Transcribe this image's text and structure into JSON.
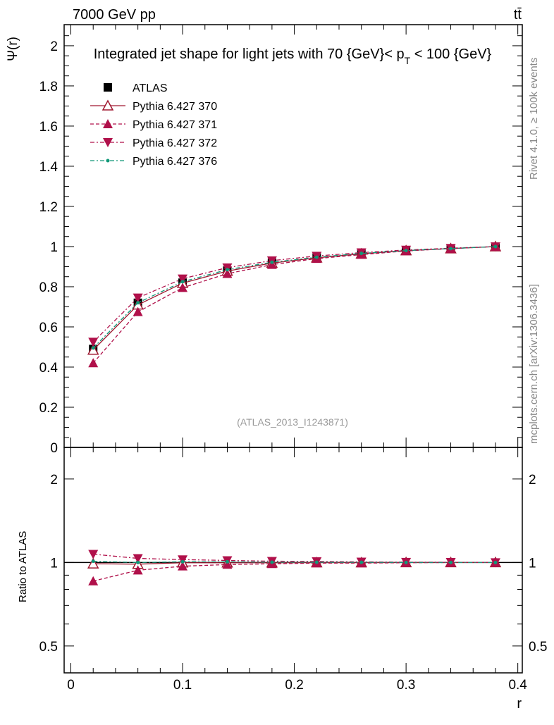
{
  "chart_data": {
    "type": "line",
    "title": "Integrated jet shape for light jets with 70 {GeV}< p_T < 100 {GeV}",
    "title_main": "Integrated jet shape for light jets with 70 {GeV}< p",
    "title_sub": "T",
    "title_tail": " < 100 {GeV}",
    "top_left_label": "7000 GeV pp",
    "top_right_label": "tt̄",
    "side_label_1": "Rivet 4.1.0, ≥ 100k events",
    "side_label_2": "mcplots.cern.ch [arXiv:1306.3436]",
    "analysis_label": "(ATLAS_2013_I1243871)",
    "xlabel": "r",
    "ylabel": "Ψ(r)",
    "ratio_ylabel": "Ratio to ATLAS",
    "xlim": [
      -0.006,
      0.404
    ],
    "ylim": [
      0,
      2.105
    ],
    "ratio_ylim": [
      0.4,
      2.6
    ],
    "ratio_scale": "log",
    "xticks": [
      {
        "v": 0,
        "label": "0"
      },
      {
        "v": 0.1,
        "label": "0.1"
      },
      {
        "v": 0.2,
        "label": "0.2"
      },
      {
        "v": 0.3,
        "label": "0.3"
      },
      {
        "v": 0.4,
        "label": "0.4"
      }
    ],
    "yticks": [
      {
        "v": 0,
        "label": "0"
      },
      {
        "v": 0.2,
        "label": "0.2"
      },
      {
        "v": 0.4,
        "label": "0.4"
      },
      {
        "v": 0.6,
        "label": "0.6"
      },
      {
        "v": 0.8,
        "label": "0.8"
      },
      {
        "v": 1,
        "label": "1"
      },
      {
        "v": 1.2,
        "label": "1.2"
      },
      {
        "v": 1.4,
        "label": "1.4"
      },
      {
        "v": 1.6,
        "label": "1.6"
      },
      {
        "v": 1.8,
        "label": "1.8"
      },
      {
        "v": 2,
        "label": "2"
      }
    ],
    "ratio_yticks": [
      {
        "v": 0.5,
        "label": "0.5"
      },
      {
        "v": 1,
        "label": "1"
      },
      {
        "v": 2,
        "label": "2"
      }
    ],
    "legend_position": "top-left",
    "x": [
      0.02,
      0.06,
      0.1,
      0.14,
      0.18,
      0.22,
      0.26,
      0.3,
      0.34,
      0.38
    ],
    "series": [
      {
        "name": "ATLAS",
        "color": "#000000",
        "marker": "square",
        "dash": "none",
        "values": [
          0.49,
          0.72,
          0.82,
          0.88,
          0.92,
          0.945,
          0.965,
          0.98,
          0.99,
          1.0
        ]
      },
      {
        "name": "Pythia 6.427 370",
        "color": "#a01830",
        "marker": "triangle-open",
        "dash": "solid",
        "values": [
          0.485,
          0.71,
          0.818,
          0.878,
          0.918,
          0.944,
          0.964,
          0.98,
          0.99,
          1.0
        ]
      },
      {
        "name": "Pythia 6.427 371",
        "color": "#b0104a",
        "marker": "triangle",
        "dash": "5,3",
        "values": [
          0.42,
          0.675,
          0.795,
          0.865,
          0.91,
          0.94,
          0.96,
          0.978,
          0.99,
          1.0
        ]
      },
      {
        "name": "Pythia 6.427 372",
        "color": "#b0104a",
        "marker": "triangle-down",
        "dash": "6,3,2,3",
        "values": [
          0.525,
          0.745,
          0.84,
          0.895,
          0.93,
          0.953,
          0.97,
          0.983,
          0.992,
          1.0
        ]
      },
      {
        "name": "Pythia 6.427 376",
        "color": "#109878",
        "marker": "dot",
        "dash": "6,3,2,3",
        "values": [
          0.495,
          0.72,
          0.825,
          0.885,
          0.922,
          0.947,
          0.966,
          0.98,
          0.99,
          1.0
        ]
      }
    ]
  }
}
